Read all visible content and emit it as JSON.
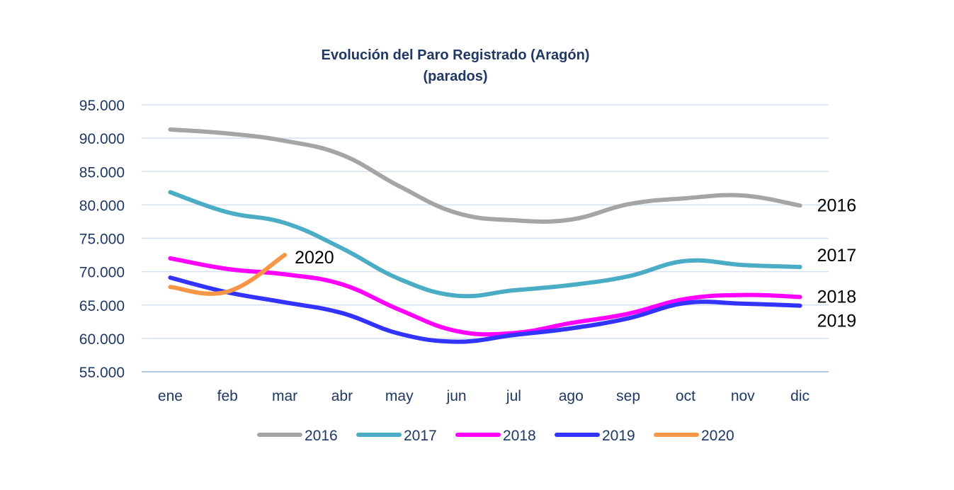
{
  "chart_data": {
    "type": "line",
    "title": "Evolución del Paro Registrado (Aragón)",
    "subtitle": "(parados)",
    "xlabel": "",
    "ylabel": "",
    "categories": [
      "ene",
      "feb",
      "mar",
      "abr",
      "may",
      "jun",
      "jul",
      "ago",
      "sep",
      "oct",
      "nov",
      "dic"
    ],
    "ylim": [
      55000,
      95000
    ],
    "yticks": [
      55000,
      60000,
      65000,
      70000,
      75000,
      80000,
      85000,
      90000,
      95000
    ],
    "ytick_labels": [
      "55.000",
      "60.000",
      "65.000",
      "70.000",
      "75.000",
      "80.000",
      "85.000",
      "90.000",
      "95.000"
    ],
    "grid": true,
    "legend_position": "bottom",
    "series": [
      {
        "name": "2016",
        "color": "#a5a5a5",
        "values": [
          91300,
          90700,
          89600,
          87500,
          82800,
          78800,
          77700,
          77800,
          80100,
          81000,
          81400,
          79900
        ],
        "end_label": "2016"
      },
      {
        "name": "2017",
        "color": "#4bacc6",
        "values": [
          81900,
          78900,
          77300,
          73500,
          68900,
          66400,
          67200,
          68000,
          69300,
          71600,
          71000,
          70700
        ],
        "end_label": "2017"
      },
      {
        "name": "2018",
        "color": "#ff00ff",
        "values": [
          72000,
          70400,
          69600,
          68100,
          64300,
          61100,
          60800,
          62300,
          63700,
          65900,
          66500,
          66200
        ],
        "end_label": "2018"
      },
      {
        "name": "2019",
        "color": "#3333ff",
        "values": [
          69100,
          66900,
          65400,
          63800,
          60700,
          59500,
          60500,
          61500,
          63000,
          65300,
          65200,
          64900
        ],
        "end_label": "2019"
      },
      {
        "name": "2020",
        "color": "#f79646",
        "values": [
          67700,
          67000,
          72500,
          null,
          null,
          null,
          null,
          null,
          null,
          null,
          null,
          null
        ],
        "end_label": "2020"
      }
    ]
  }
}
